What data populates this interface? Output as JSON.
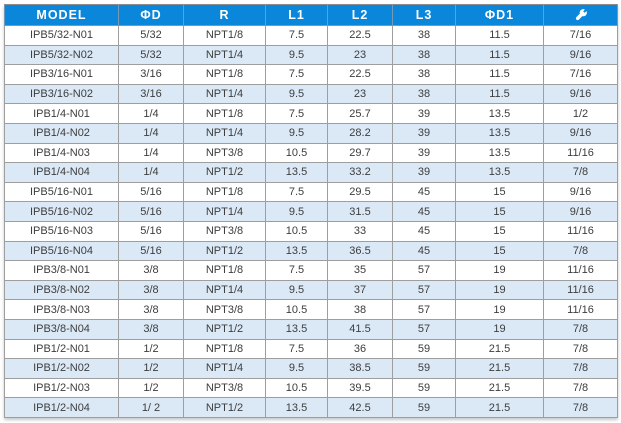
{
  "accent_color": "#0a87da",
  "stripe_color": "#dbe9f7",
  "table": {
    "headers": [
      "MODEL",
      "ΦD",
      "R",
      "L1",
      "L2",
      "L3",
      "ΦD1"
    ],
    "last_column_icon": "wrench-icon",
    "rows": [
      [
        "IPB5/32-N01",
        "5/32",
        "NPT1/8",
        "7.5",
        "22.5",
        "38",
        "11.5",
        "7/16"
      ],
      [
        "IPB5/32-N02",
        "5/32",
        "NPT1/4",
        "9.5",
        "23",
        "38",
        "11.5",
        "9/16"
      ],
      [
        "IPB3/16-N01",
        "3/16",
        "NPT1/8",
        "7.5",
        "22.5",
        "38",
        "11.5",
        "7/16"
      ],
      [
        "IPB3/16-N02",
        "3/16",
        "NPT1/4",
        "9.5",
        "23",
        "38",
        "11.5",
        "9/16"
      ],
      [
        "IPB1/4-N01",
        "1/4",
        "NPT1/8",
        "7.5",
        "25.7",
        "39",
        "13.5",
        "1/2"
      ],
      [
        "IPB1/4-N02",
        "1/4",
        "NPT1/4",
        "9.5",
        "28.2",
        "39",
        "13.5",
        "9/16"
      ],
      [
        "IPB1/4-N03",
        "1/4",
        "NPT3/8",
        "10.5",
        "29.7",
        "39",
        "13.5",
        "11/16"
      ],
      [
        "IPB1/4-N04",
        "1/4",
        "NPT1/2",
        "13.5",
        "33.2",
        "39",
        "13.5",
        "7/8"
      ],
      [
        "IPB5/16-N01",
        "5/16",
        "NPT1/8",
        "7.5",
        "29.5",
        "45",
        "15",
        "9/16"
      ],
      [
        "IPB5/16-N02",
        "5/16",
        "NPT1/4",
        "9.5",
        "31.5",
        "45",
        "15",
        "9/16"
      ],
      [
        "IPB5/16-N03",
        "5/16",
        "NPT3/8",
        "10.5",
        "33",
        "45",
        "15",
        "11/16"
      ],
      [
        "IPB5/16-N04",
        "5/16",
        "NPT1/2",
        "13.5",
        "36.5",
        "45",
        "15",
        "7/8"
      ],
      [
        "IPB3/8-N01",
        "3/8",
        "NPT1/8",
        "7.5",
        "35",
        "57",
        "19",
        "11/16"
      ],
      [
        "IPB3/8-N02",
        "3/8",
        "NPT1/4",
        "9.5",
        "37",
        "57",
        "19",
        "11/16"
      ],
      [
        "IPB3/8-N03",
        "3/8",
        "NPT3/8",
        "10.5",
        "38",
        "57",
        "19",
        "11/16"
      ],
      [
        "IPB3/8-N04",
        "3/8",
        "NPT1/2",
        "13.5",
        "41.5",
        "57",
        "19",
        "7/8"
      ],
      [
        "IPB1/2-N01",
        "1/2",
        "NPT1/8",
        "7.5",
        "36",
        "59",
        "21.5",
        "7/8"
      ],
      [
        "IPB1/2-N02",
        "1/2",
        "NPT1/4",
        "9.5",
        "38.5",
        "59",
        "21.5",
        "7/8"
      ],
      [
        "IPB1/2-N03",
        "1/2",
        "NPT3/8",
        "10.5",
        "39.5",
        "59",
        "21.5",
        "7/8"
      ],
      [
        "IPB1/2-N04",
        "1/ 2",
        "NPT1/2",
        "13.5",
        "42.5",
        "59",
        "21.5",
        "7/8"
      ]
    ]
  }
}
